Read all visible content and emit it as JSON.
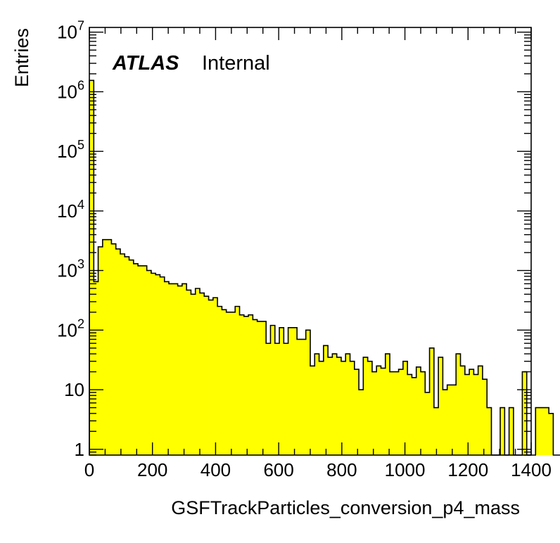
{
  "chart_data": {
    "type": "bar",
    "histogram": true,
    "xlabel": "GSFTrackParticles_conversion_p4_mass",
    "ylabel": "Entries",
    "xlim": [
      0,
      1400
    ],
    "ylim": [
      0.8,
      12000000
    ],
    "yscale": "log",
    "bin_width": 14,
    "fill_color": "#ffff00",
    "line_color": "#000000",
    "grid": false,
    "legend": "none",
    "annotation": {
      "bold": "ATLAS",
      "regular": "Internal"
    },
    "xticks": [
      {
        "value": 0,
        "label": "0"
      },
      {
        "value": 200,
        "label": "200"
      },
      {
        "value": 400,
        "label": "400"
      },
      {
        "value": 600,
        "label": "600"
      },
      {
        "value": 800,
        "label": "800"
      },
      {
        "value": 1000,
        "label": "1000"
      },
      {
        "value": 1200,
        "label": "1200"
      },
      {
        "value": 1400,
        "label": "1400"
      }
    ],
    "yticks": [
      {
        "value": 1,
        "base": "1",
        "exp": ""
      },
      {
        "value": 10,
        "base": "10",
        "exp": ""
      },
      {
        "value": 100,
        "base": "10",
        "exp": "2"
      },
      {
        "value": 1000,
        "base": "10",
        "exp": "3"
      },
      {
        "value": 10000,
        "base": "10",
        "exp": "4"
      },
      {
        "value": 100000,
        "base": "10",
        "exp": "5"
      },
      {
        "value": 1000000,
        "base": "10",
        "exp": "6"
      },
      {
        "value": 10000000,
        "base": "10",
        "exp": "7"
      }
    ],
    "values": [
      1550000,
      650,
      2500,
      3300,
      3300,
      2800,
      2300,
      1900,
      1700,
      1500,
      1300,
      1200,
      1200,
      1000,
      900,
      850,
      780,
      650,
      600,
      600,
      550,
      600,
      470,
      400,
      500,
      420,
      370,
      320,
      350,
      250,
      220,
      200,
      200,
      250,
      180,
      170,
      180,
      150,
      140,
      140,
      60,
      120,
      60,
      110,
      60,
      110,
      110,
      70,
      70,
      100,
      25,
      40,
      30,
      55,
      35,
      40,
      35,
      30,
      40,
      30,
      22,
      10,
      35,
      30,
      20,
      25,
      23,
      40,
      20,
      20,
      22,
      30,
      18,
      16,
      24,
      20,
      9,
      50,
      5,
      35,
      10,
      12,
      12,
      40,
      25,
      18,
      22,
      18,
      25,
      15,
      5,
      0,
      0,
      5,
      0,
      5,
      0,
      0,
      20,
      0,
      0,
      5,
      5,
      5,
      4,
      0,
      0,
      0,
      0,
      0
    ]
  }
}
